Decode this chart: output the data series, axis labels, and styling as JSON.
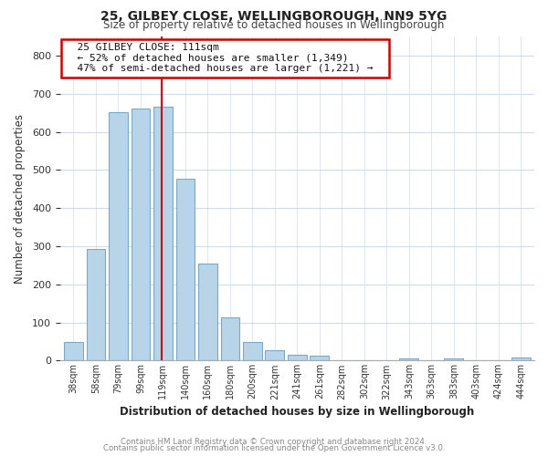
{
  "title": "25, GILBEY CLOSE, WELLINGBOROUGH, NN9 5YG",
  "subtitle": "Size of property relative to detached houses in Wellingborough",
  "xlabel": "Distribution of detached houses by size in Wellingborough",
  "ylabel": "Number of detached properties",
  "bin_labels": [
    "38sqm",
    "58sqm",
    "79sqm",
    "99sqm",
    "119sqm",
    "140sqm",
    "160sqm",
    "180sqm",
    "200sqm",
    "221sqm",
    "241sqm",
    "261sqm",
    "282sqm",
    "302sqm",
    "322sqm",
    "343sqm",
    "363sqm",
    "383sqm",
    "403sqm",
    "424sqm",
    "444sqm"
  ],
  "bar_heights": [
    48,
    293,
    651,
    661,
    667,
    478,
    254,
    113,
    48,
    28,
    15,
    13,
    0,
    0,
    0,
    5,
    0,
    5,
    0,
    0,
    7
  ],
  "bar_color": "#b8d4e8",
  "bar_edge_color": "#7aaac8",
  "annotation_title": "25 GILBEY CLOSE: 111sqm",
  "annotation_line1": "← 52% of detached houses are smaller (1,349)",
  "annotation_line2": "47% of semi-detached houses are larger (1,221) →",
  "annotation_box_facecolor": "#ffffff",
  "annotation_box_edgecolor": "#cc0000",
  "marker_bin_index": 4,
  "marker_line_color": "#cc0000",
  "ylim": [
    0,
    850
  ],
  "yticks": [
    0,
    100,
    200,
    300,
    400,
    500,
    600,
    700,
    800
  ],
  "footer_line1": "Contains HM Land Registry data © Crown copyright and database right 2024.",
  "footer_line2": "Contains public sector information licensed under the Open Government Licence v3.0.",
  "bg_color": "#ffffff",
  "plot_bg_color": "#ffffff",
  "grid_color": "#ccddee",
  "title_color": "#222222",
  "subtitle_color": "#444444",
  "footer_color": "#888888"
}
